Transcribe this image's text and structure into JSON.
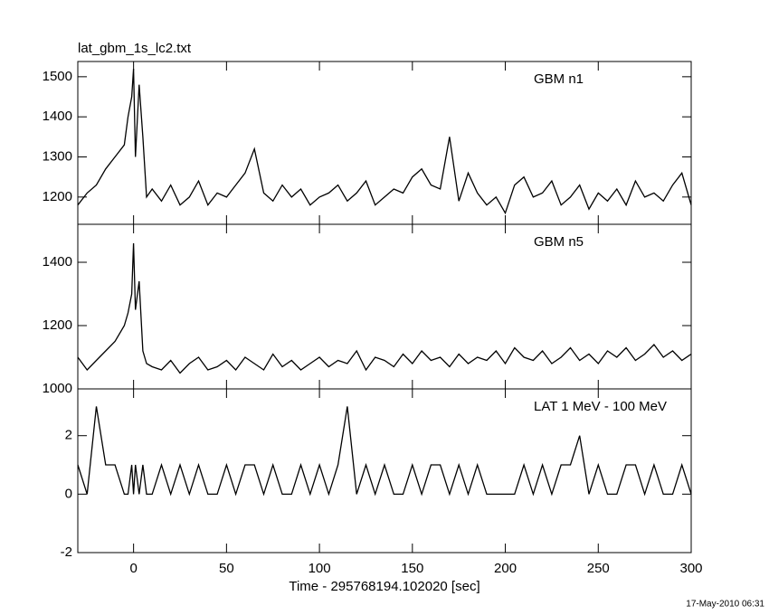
{
  "footer": "17-May-2010 06:31",
  "chart_data": [
    {
      "type": "line",
      "title": "lat_gbm_1s_lc2.txt",
      "annotation": "GBM n1",
      "x": [
        -30,
        -25,
        -20,
        -15,
        -10,
        -5,
        -3,
        -1,
        0,
        1,
        3,
        5,
        7,
        10,
        15,
        20,
        25,
        30,
        35,
        40,
        45,
        50,
        55,
        60,
        65,
        70,
        75,
        80,
        85,
        90,
        95,
        100,
        105,
        110,
        115,
        120,
        125,
        130,
        135,
        140,
        145,
        150,
        155,
        160,
        165,
        170,
        175,
        180,
        185,
        190,
        195,
        200,
        205,
        210,
        215,
        220,
        225,
        230,
        235,
        240,
        245,
        250,
        255,
        260,
        265,
        270,
        275,
        280,
        285,
        290,
        295,
        300
      ],
      "values": [
        1180,
        1210,
        1230,
        1270,
        1300,
        1330,
        1400,
        1450,
        1520,
        1300,
        1480,
        1350,
        1200,
        1220,
        1190,
        1230,
        1180,
        1200,
        1240,
        1180,
        1210,
        1200,
        1230,
        1260,
        1320,
        1210,
        1190,
        1230,
        1200,
        1220,
        1180,
        1200,
        1210,
        1230,
        1190,
        1210,
        1240,
        1180,
        1200,
        1220,
        1210,
        1250,
        1270,
        1230,
        1220,
        1350,
        1190,
        1260,
        1210,
        1180,
        1200,
        1160,
        1230,
        1250,
        1200,
        1210,
        1240,
        1180,
        1200,
        1230,
        1170,
        1210,
        1190,
        1220,
        1180,
        1240,
        1200,
        1210,
        1190,
        1230,
        1260,
        1180
      ],
      "color": "#000000",
      "xlim": [
        -30,
        300
      ],
      "xticks": [
        0,
        50,
        100,
        150,
        200,
        250,
        300
      ],
      "ylim": [
        1132,
        1538
      ],
      "yticks": [
        1200,
        1300,
        1400,
        1500
      ]
    },
    {
      "type": "line",
      "annotation": "GBM n5",
      "x": [
        -30,
        -25,
        -20,
        -15,
        -10,
        -5,
        -3,
        -1,
        0,
        1,
        3,
        5,
        7,
        10,
        15,
        20,
        25,
        30,
        35,
        40,
        45,
        50,
        55,
        60,
        65,
        70,
        75,
        80,
        85,
        90,
        95,
        100,
        105,
        110,
        115,
        120,
        125,
        130,
        135,
        140,
        145,
        150,
        155,
        160,
        165,
        170,
        175,
        180,
        185,
        190,
        195,
        200,
        205,
        210,
        215,
        220,
        225,
        230,
        235,
        240,
        245,
        250,
        255,
        260,
        265,
        270,
        275,
        280,
        285,
        290,
        295,
        300
      ],
      "values": [
        1100,
        1060,
        1090,
        1120,
        1150,
        1200,
        1240,
        1300,
        1460,
        1250,
        1340,
        1120,
        1080,
        1070,
        1060,
        1090,
        1050,
        1080,
        1100,
        1060,
        1070,
        1090,
        1060,
        1100,
        1080,
        1060,
        1110,
        1070,
        1090,
        1060,
        1080,
        1100,
        1070,
        1090,
        1080,
        1120,
        1060,
        1100,
        1090,
        1070,
        1110,
        1080,
        1120,
        1090,
        1100,
        1070,
        1110,
        1080,
        1100,
        1090,
        1120,
        1080,
        1130,
        1100,
        1090,
        1120,
        1080,
        1100,
        1130,
        1090,
        1110,
        1080,
        1120,
        1100,
        1130,
        1090,
        1110,
        1140,
        1100,
        1120,
        1090,
        1110
      ],
      "color": "#000000",
      "xlim": [
        -30,
        300
      ],
      "xticks": [
        0,
        50,
        100,
        150,
        200,
        250,
        300
      ],
      "ylim": [
        1000,
        1520
      ],
      "yticks": [
        1000,
        1200,
        1400
      ]
    },
    {
      "type": "line",
      "annotation": "LAT 1 MeV - 100 MeV",
      "xlabel": "Time - 295768194.102020 [sec]",
      "x": [
        -30,
        -25,
        -20,
        -15,
        -10,
        -5,
        -3,
        -1,
        0,
        1,
        3,
        5,
        7,
        10,
        15,
        20,
        25,
        30,
        35,
        40,
        45,
        50,
        55,
        60,
        65,
        70,
        75,
        80,
        85,
        90,
        95,
        100,
        105,
        110,
        115,
        120,
        125,
        130,
        135,
        140,
        145,
        150,
        155,
        160,
        165,
        170,
        175,
        180,
        185,
        190,
        195,
        200,
        205,
        210,
        215,
        220,
        225,
        230,
        235,
        240,
        245,
        250,
        255,
        260,
        265,
        270,
        275,
        280,
        285,
        290,
        295,
        300
      ],
      "values": [
        1,
        0,
        3,
        1,
        1,
        0,
        0,
        1,
        0,
        1,
        0,
        1,
        0,
        0,
        1,
        0,
        1,
        0,
        1,
        0,
        0,
        1,
        0,
        1,
        1,
        0,
        1,
        0,
        0,
        1,
        0,
        1,
        0,
        1,
        3,
        0,
        1,
        0,
        1,
        0,
        0,
        1,
        0,
        1,
        1,
        0,
        1,
        0,
        1,
        0,
        0,
        0,
        0,
        1,
        0,
        1,
        0,
        1,
        1,
        2,
        0,
        1,
        0,
        0,
        1,
        1,
        0,
        1,
        0,
        0,
        1,
        0
      ],
      "color": "#000000",
      "xlim": [
        -30,
        300
      ],
      "xticks": [
        0,
        50,
        100,
        150,
        200,
        250,
        300
      ],
      "ylim": [
        -2,
        3.6
      ],
      "yticks": [
        -2,
        0,
        2
      ]
    }
  ]
}
